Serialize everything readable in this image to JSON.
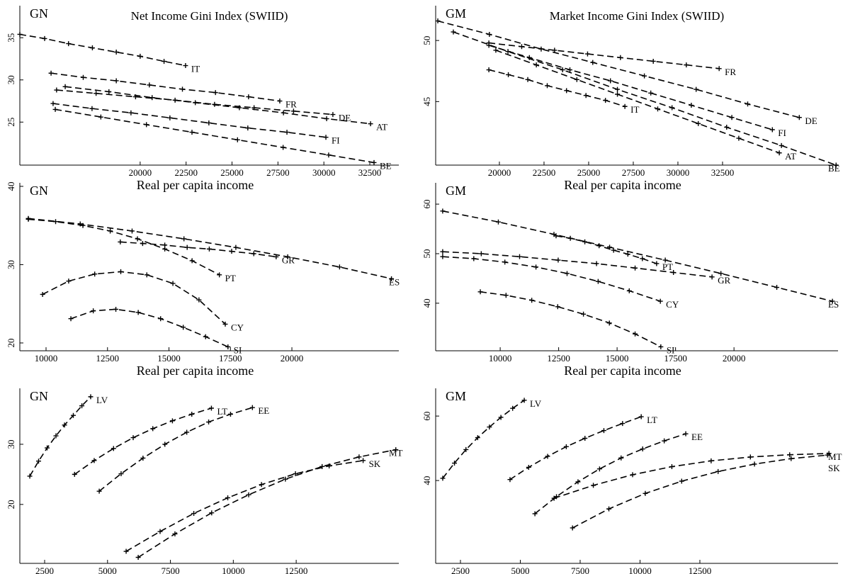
{
  "chart_data": [
    {
      "type": "scatter",
      "panel_label": "GN",
      "title": "Net Income Gini Index (SWIID)",
      "xlabel": "Real per capita income",
      "xlim": [
        13450,
        34080
      ],
      "ylim": [
        19.9,
        38.8
      ],
      "xticks": [
        20000,
        22500,
        25000,
        27500,
        30000,
        32500
      ],
      "yticks": [
        25,
        30,
        35
      ],
      "color": "#000000",
      "series": [
        {
          "name": "IT",
          "x": [
            13450,
            14800,
            16100,
            17400,
            18700,
            20000,
            21300,
            22470
          ],
          "values": [
            35.4,
            34.9,
            34.3,
            33.8,
            33.3,
            32.8,
            32.2,
            31.7
          ]
        },
        {
          "name": "FR",
          "x": [
            15150,
            16900,
            18700,
            20500,
            22300,
            24100,
            25900,
            27600
          ],
          "values": [
            30.8,
            30.3,
            29.9,
            29.4,
            28.9,
            28.5,
            28.0,
            27.5
          ]
        },
        {
          "name": "DE",
          "x": [
            15450,
            17600,
            19750,
            21900,
            24050,
            26200,
            28350,
            30490
          ],
          "values": [
            28.8,
            28.4,
            28.0,
            27.6,
            27.1,
            26.7,
            26.3,
            25.9
          ]
        },
        {
          "name": "AT",
          "x": [
            15920,
            18300,
            20650,
            23000,
            25400,
            27800,
            30150,
            32540
          ],
          "values": [
            29.2,
            28.6,
            27.9,
            27.3,
            26.7,
            26.1,
            25.4,
            24.8
          ]
        },
        {
          "name": "FI",
          "x": [
            15260,
            17380,
            19500,
            21620,
            23740,
            25860,
            27990,
            30110
          ],
          "values": [
            27.2,
            26.6,
            26.1,
            25.5,
            24.9,
            24.3,
            23.8,
            23.2
          ]
        },
        {
          "name": "BE",
          "x": [
            15380,
            17860,
            20340,
            22820,
            25300,
            27780,
            30260,
            32730
          ],
          "values": [
            26.5,
            25.6,
            24.7,
            23.8,
            22.9,
            22.0,
            21.1,
            20.2
          ]
        }
      ]
    },
    {
      "type": "scatter",
      "panel_label": "GM",
      "title": "Market Income Gini Index (SWIID)",
      "xlabel": "Real per capita income",
      "xlim": [
        16430,
        38970
      ],
      "ylim": [
        39.8,
        52.85
      ],
      "xticks": [
        20000,
        22500,
        25000,
        27500,
        30000,
        32500
      ],
      "yticks": [
        45,
        50
      ],
      "color": "#000000",
      "series": [
        {
          "name": "FR",
          "x": [
            19410,
            21250,
            23090,
            24940,
            26780,
            28620,
            30470,
            32310
          ],
          "values": [
            49.8,
            49.5,
            49.2,
            48.9,
            48.6,
            48.3,
            48.0,
            47.7
          ]
        },
        {
          "name": "IT",
          "x": [
            19410,
            20500,
            21590,
            22680,
            23760,
            24850,
            25940,
            27030
          ],
          "values": [
            47.6,
            47.2,
            46.8,
            46.3,
            45.9,
            45.5,
            45.1,
            44.6
          ]
        },
        {
          "name": "DE",
          "x": [
            16550,
            19440,
            22340,
            25230,
            28120,
            31020,
            33910,
            36800
          ],
          "values": [
            51.6,
            50.5,
            49.3,
            48.2,
            47.1,
            46.0,
            44.8,
            43.7
          ]
        },
        {
          "name": "FI",
          "x": [
            19410,
            21680,
            23950,
            26220,
            28480,
            30750,
            33020,
            35290
          ],
          "values": [
            49.6,
            48.6,
            47.6,
            46.7,
            45.7,
            44.7,
            43.7,
            42.7
          ]
        },
        {
          "name": "AT",
          "x": [
            19800,
            22070,
            24340,
            26610,
            28870,
            31140,
            33410,
            35680
          ],
          "values": [
            49.2,
            48.0,
            46.8,
            45.6,
            44.4,
            43.2,
            42.0,
            40.8
          ]
        },
        {
          "name": "BE",
          "x": [
            17420,
            20480,
            23540,
            26610,
            29670,
            32730,
            35800,
            38860
          ],
          "values": [
            50.7,
            49.1,
            47.6,
            46.0,
            44.5,
            42.9,
            41.4,
            39.8
          ]
        }
      ]
    },
    {
      "type": "scatter",
      "panel_label": "GN",
      "xlabel": "Real per capita income",
      "xlim": [
        8934,
        24350
      ],
      "ylim": [
        19.0,
        40.45
      ],
      "xticks": [
        10000,
        12500,
        15000,
        17500,
        20000
      ],
      "yticks": [
        20,
        30,
        40
      ],
      "color": "#000000",
      "series": [
        {
          "name": "PT",
          "x": [
            9280,
            10390,
            11500,
            12610,
            13720,
            14830,
            15940,
            17050
          ],
          "values": [
            35.8,
            35.5,
            35.0,
            34.3,
            33.3,
            32.0,
            30.5,
            28.7
          ]
        },
        {
          "name": "GR",
          "x": [
            13020,
            13930,
            14830,
            15740,
            16640,
            17550,
            18450,
            19360
          ],
          "values": [
            32.9,
            32.7,
            32.5,
            32.2,
            32.0,
            31.7,
            31.4,
            31.0
          ]
        },
        {
          "name": "ES",
          "x": [
            9280,
            11390,
            13500,
            15610,
            17720,
            19830,
            21940,
            24050
          ],
          "values": [
            35.9,
            35.2,
            34.3,
            33.3,
            32.2,
            31.0,
            29.7,
            28.2
          ]
        },
        {
          "name": "CY",
          "x": [
            9860,
            10920,
            11980,
            13040,
            14100,
            15160,
            16220,
            17290
          ],
          "values": [
            26.2,
            27.9,
            28.8,
            29.1,
            28.7,
            27.6,
            25.5,
            22.4
          ]
        },
        {
          "name": "SI",
          "x": [
            11010,
            11920,
            12840,
            13750,
            14660,
            15580,
            16490,
            17400
          ],
          "values": [
            23.1,
            24.1,
            24.3,
            23.9,
            23.1,
            22.0,
            20.8,
            19.5
          ]
        }
      ]
    },
    {
      "type": "scatter",
      "panel_label": "GM",
      "xlabel": "Real per capita income",
      "xlim": [
        7240,
        24450
      ],
      "ylim": [
        30.4,
        64.3
      ],
      "xticks": [
        10000,
        12500,
        15000,
        17500,
        20000
      ],
      "yticks": [
        40,
        50,
        60
      ],
      "color": "#000000",
      "series": [
        {
          "name": "PT",
          "x": [
            12390,
            13000,
            13620,
            14230,
            14850,
            15460,
            16080,
            16690
          ],
          "values": [
            53.6,
            53.1,
            52.4,
            51.6,
            50.7,
            49.9,
            49.0,
            48.0
          ]
        },
        {
          "name": "GR",
          "x": [
            7540,
            9190,
            10830,
            12480,
            14120,
            15770,
            17410,
            19060
          ],
          "values": [
            50.4,
            50.0,
            49.4,
            48.7,
            48.0,
            47.1,
            46.2,
            45.3
          ]
        },
        {
          "name": "ES",
          "x": [
            7540,
            9920,
            12300,
            14680,
            17060,
            19440,
            21830,
            24210
          ],
          "values": [
            58.6,
            56.4,
            53.9,
            51.3,
            48.7,
            46.0,
            43.2,
            40.4
          ]
        },
        {
          "name": "CY",
          "x": [
            7540,
            8870,
            10200,
            11530,
            12860,
            14190,
            15520,
            16850
          ],
          "values": [
            49.4,
            49.0,
            48.3,
            47.3,
            46.0,
            44.4,
            42.5,
            40.4
          ]
        },
        {
          "name": "SI",
          "x": [
            9150,
            10250,
            11350,
            12460,
            13560,
            14670,
            15770,
            16870
          ],
          "values": [
            42.3,
            41.6,
            40.6,
            39.3,
            37.8,
            36.0,
            33.8,
            31.2
          ]
        }
      ]
    },
    {
      "type": "scatter",
      "panel_label": "GN",
      "xlabel": "Real per capita income",
      "xlim": [
        1514,
        16580
      ],
      "ylim": [
        10.2,
        39.3
      ],
      "xticks": [
        2500,
        5000,
        7500,
        10000,
        12500
      ],
      "yticks": [
        20,
        30
      ],
      "color": "#000000",
      "series": [
        {
          "name": "LV",
          "x": [
            1910,
            2260,
            2600,
            2950,
            3290,
            3640,
            3980,
            4330
          ],
          "values": [
            24.7,
            27.2,
            29.4,
            31.4,
            33.2,
            34.8,
            36.4,
            37.9
          ]
        },
        {
          "name": "LT",
          "x": [
            3690,
            4470,
            5240,
            6020,
            6800,
            7580,
            8350,
            9130
          ],
          "values": [
            25.0,
            27.3,
            29.3,
            31.1,
            32.6,
            33.9,
            35.0,
            36.0
          ]
        },
        {
          "name": "EE",
          "x": [
            4670,
            5540,
            6410,
            7280,
            8150,
            9020,
            9890,
            10760
          ],
          "values": [
            22.2,
            25.1,
            27.7,
            30.0,
            32.0,
            33.7,
            35.0,
            36.1
          ]
        },
        {
          "name": "MT",
          "x": [
            6220,
            7680,
            9140,
            10610,
            12070,
            13530,
            15000,
            16460
          ],
          "values": [
            11.2,
            15.1,
            18.6,
            21.6,
            24.2,
            26.3,
            27.9,
            29.1
          ]
        },
        {
          "name": "SK",
          "x": [
            5740,
            7090,
            8430,
            9780,
            11120,
            12470,
            13810,
            15160
          ],
          "values": [
            12.2,
            15.5,
            18.5,
            21.1,
            23.3,
            25.1,
            26.4,
            27.3
          ]
        }
      ]
    },
    {
      "type": "scatter",
      "panel_label": "GM",
      "xlabel": "Real per capita income",
      "xlim": [
        1465,
        18270
      ],
      "ylim": [
        14.3,
        68.6
      ],
      "xticks": [
        2500,
        5000,
        7500,
        10000,
        12500
      ],
      "yticks": [
        40,
        60
      ],
      "color": "#000000",
      "series": [
        {
          "name": "LV",
          "x": [
            1760,
            2250,
            2730,
            3220,
            3710,
            4190,
            4680,
            5165
          ],
          "values": [
            40.7,
            45.4,
            49.6,
            53.3,
            56.6,
            59.6,
            62.4,
            64.9
          ]
        },
        {
          "name": "LT",
          "x": [
            4570,
            5350,
            6140,
            6920,
            7700,
            8490,
            9270,
            10050
          ],
          "values": [
            40.3,
            44.1,
            47.5,
            50.5,
            53.1,
            55.5,
            57.7,
            59.8
          ]
        },
        {
          "name": "EE",
          "x": [
            5610,
            6510,
            7410,
            8310,
            9210,
            10110,
            11010,
            11910
          ],
          "values": [
            29.7,
            35.0,
            39.6,
            43.6,
            47.0,
            49.8,
            52.3,
            54.5
          ]
        },
        {
          "name": "MT",
          "x": [
            6410,
            8050,
            9690,
            11330,
            12970,
            14610,
            16250,
            17890
          ],
          "values": [
            34.5,
            38.5,
            41.8,
            44.3,
            46.1,
            47.3,
            48.0,
            48.4
          ]
        },
        {
          "name": "SK",
          "x": [
            7180,
            8700,
            10220,
            11740,
            13260,
            14780,
            16310,
            17830
          ],
          "values": [
            25.3,
            31.2,
            36.0,
            39.8,
            42.8,
            45.1,
            46.8,
            47.9
          ]
        }
      ]
    }
  ]
}
